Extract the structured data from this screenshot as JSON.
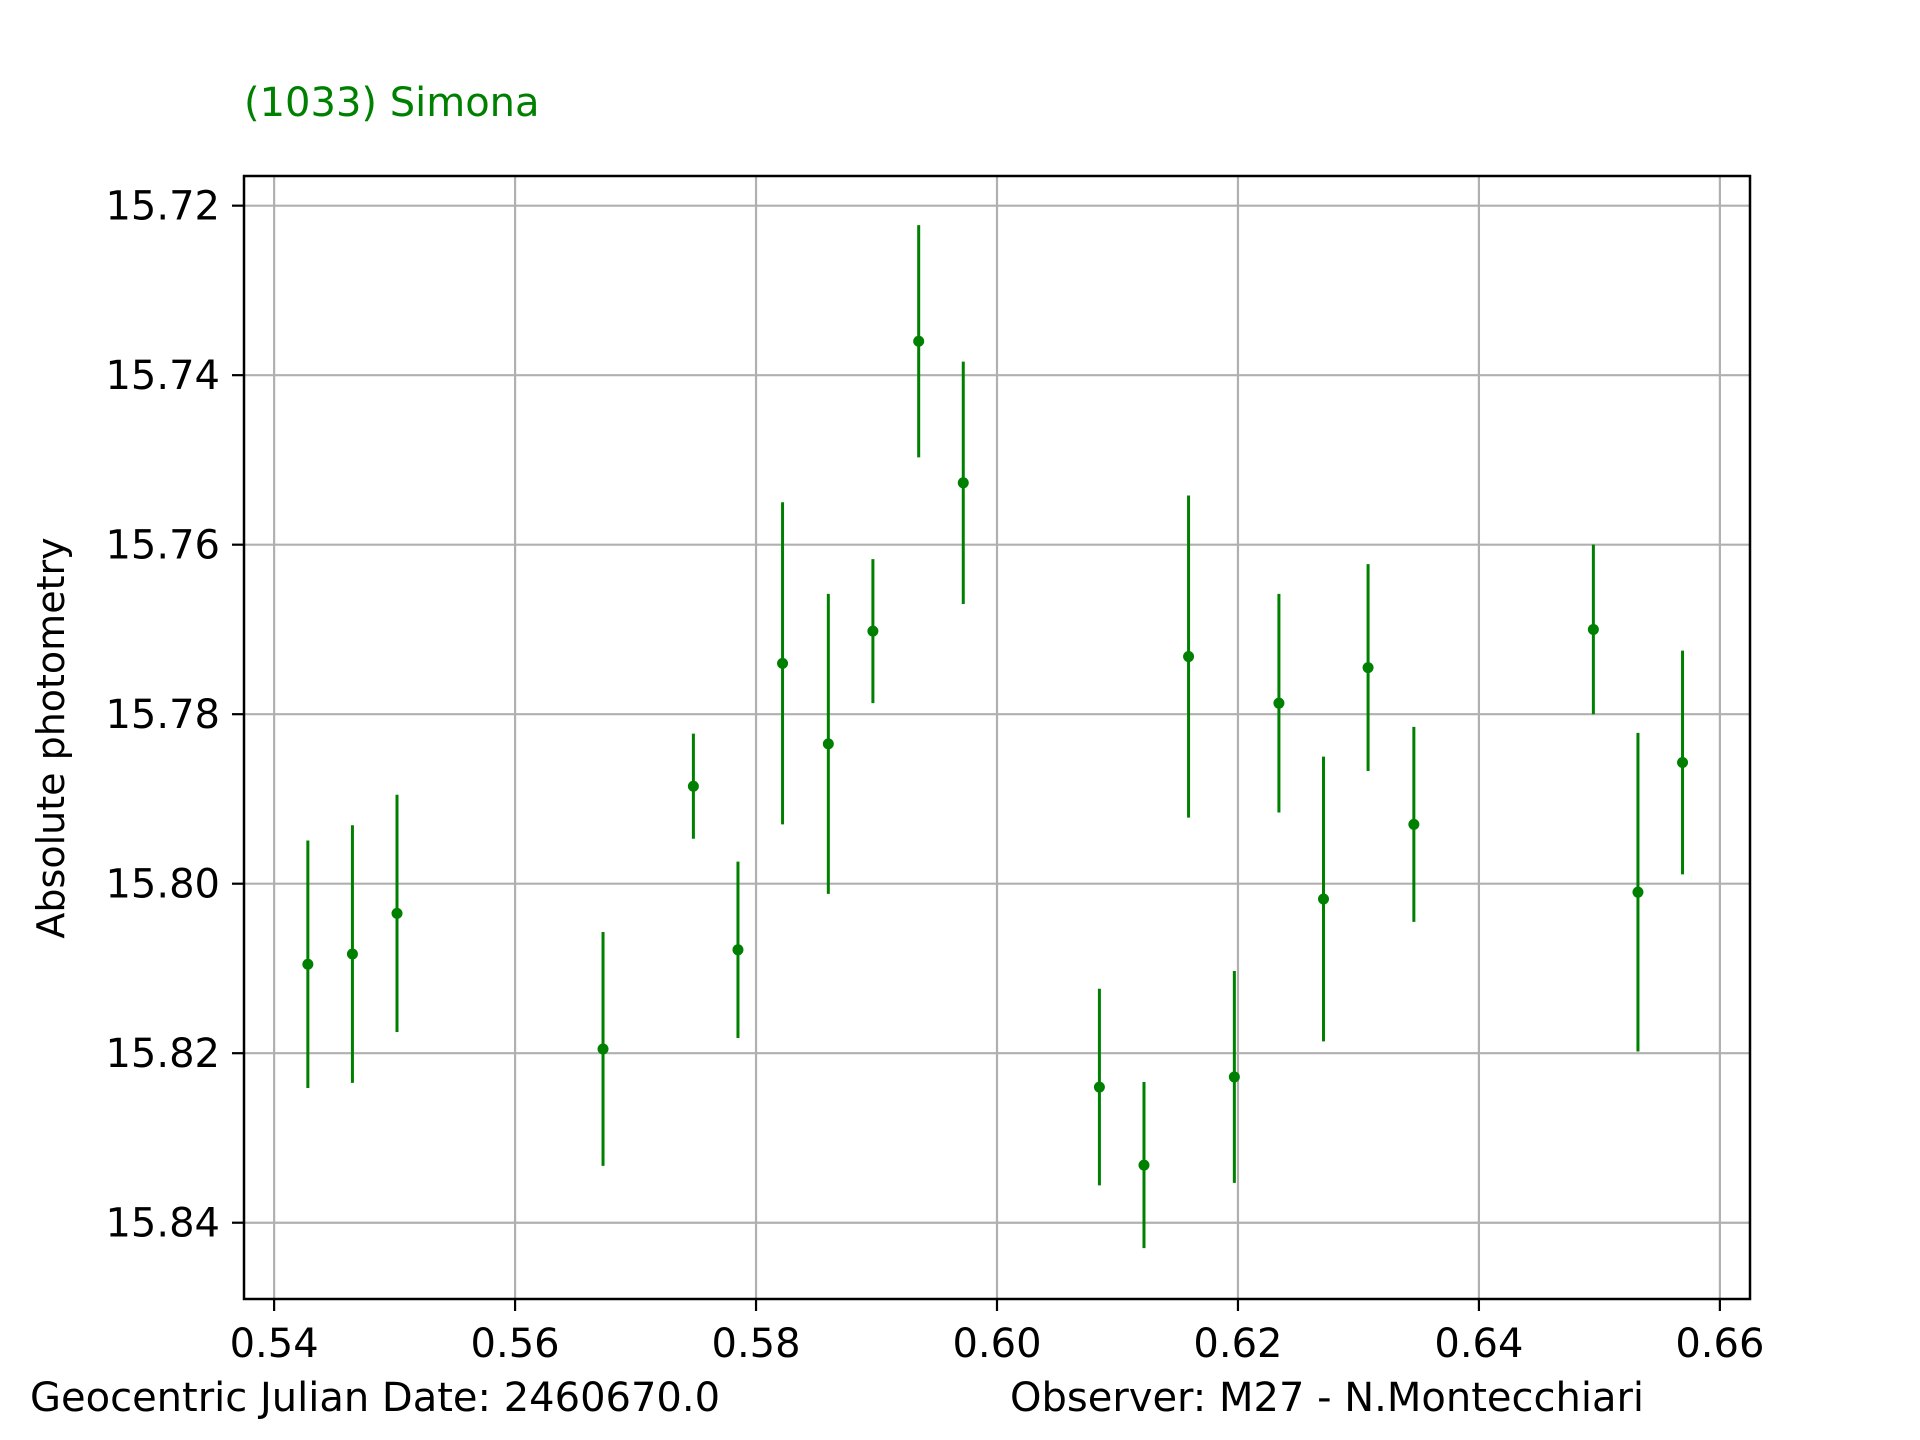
{
  "chart_data": {
    "type": "scatter",
    "title": "(1033) Simona",
    "xlabel": "",
    "ylabel": "Absolute photometry",
    "xlim": [
      0.5375,
      0.6625
    ],
    "ylim": [
      15.849,
      15.7165
    ],
    "y_inverted": true,
    "grid": true,
    "color": "#008000",
    "x_ticks": [
      "0.54",
      "0.56",
      "0.58",
      "0.60",
      "0.62",
      "0.64",
      "0.66"
    ],
    "x_tick_values": [
      0.54,
      0.56,
      0.58,
      0.6,
      0.62,
      0.64,
      0.66
    ],
    "y_ticks": [
      "15.72",
      "15.74",
      "15.76",
      "15.78",
      "15.80",
      "15.82",
      "15.84"
    ],
    "y_tick_values": [
      15.72,
      15.74,
      15.76,
      15.78,
      15.8,
      15.82,
      15.84
    ],
    "series": [
      {
        "points": [
          {
            "x": 0.5428,
            "y": 15.8095,
            "err": 0.0146
          },
          {
            "x": 0.5465,
            "y": 15.8083,
            "err": 0.0152
          },
          {
            "x": 0.5502,
            "y": 15.8035,
            "err": 0.014
          },
          {
            "x": 0.5673,
            "y": 15.8195,
            "err": 0.0138
          },
          {
            "x": 0.5748,
            "y": 15.7885,
            "err": 0.0062
          },
          {
            "x": 0.5785,
            "y": 15.8078,
            "err": 0.0104
          },
          {
            "x": 0.5822,
            "y": 15.774,
            "err": 0.019
          },
          {
            "x": 0.586,
            "y": 15.7835,
            "err": 0.0177
          },
          {
            "x": 0.5897,
            "y": 15.7702,
            "err": 0.0085
          },
          {
            "x": 0.5935,
            "y": 15.736,
            "err": 0.0137
          },
          {
            "x": 0.5972,
            "y": 15.7527,
            "err": 0.0143
          },
          {
            "x": 0.6085,
            "y": 15.824,
            "err": 0.0116
          },
          {
            "x": 0.6122,
            "y": 15.8332,
            "err": 0.0098
          },
          {
            "x": 0.6159,
            "y": 15.7732,
            "err": 0.019
          },
          {
            "x": 0.6197,
            "y": 15.8228,
            "err": 0.0125
          },
          {
            "x": 0.6234,
            "y": 15.7787,
            "err": 0.0129
          },
          {
            "x": 0.6271,
            "y": 15.8018,
            "err": 0.0168
          },
          {
            "x": 0.6308,
            "y": 15.7745,
            "err": 0.0122
          },
          {
            "x": 0.6346,
            "y": 15.793,
            "err": 0.0115
          },
          {
            "x": 0.6495,
            "y": 15.77,
            "err": 0.01
          },
          {
            "x": 0.6532,
            "y": 15.801,
            "err": 0.0188
          },
          {
            "x": 0.6569,
            "y": 15.7857,
            "err": 0.0132
          }
        ]
      }
    ]
  },
  "footer": {
    "left": "Geocentric Julian Date: 2460670.0",
    "right": "Observer: M27 - N.Montecchiari"
  }
}
